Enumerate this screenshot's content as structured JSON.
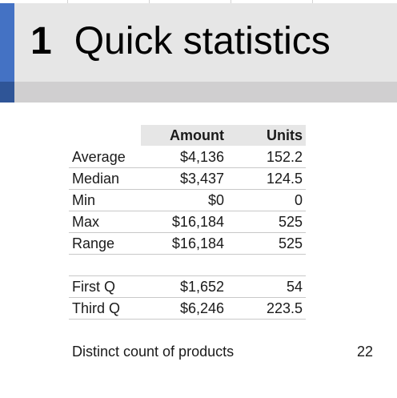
{
  "section": {
    "number": "1",
    "title": "Quick statistics"
  },
  "stats_table": {
    "headers": {
      "amount": "Amount",
      "units": "Units"
    },
    "rows": [
      {
        "label": "Average",
        "amount": "$4,136",
        "units": "152.2"
      },
      {
        "label": "Median",
        "amount": "$3,437",
        "units": "124.5"
      },
      {
        "label": "Min",
        "amount": "$0",
        "units": "0"
      },
      {
        "label": "Max",
        "amount": "$16,184",
        "units": "525"
      },
      {
        "label": "Range",
        "amount": "$16,184",
        "units": "525"
      }
    ],
    "quartiles": [
      {
        "label": "First Q",
        "amount": "$1,652",
        "units": "54"
      },
      {
        "label": "Third Q",
        "amount": "$6,246",
        "units": "223.5"
      }
    ]
  },
  "distinct": {
    "label": "Distinct count of products",
    "value": "22"
  },
  "colors": {
    "accent": "#4472c4",
    "accent_dark": "#2f5597",
    "header_band": "#e6e6e6",
    "sub_band": "#d0cfd0"
  }
}
